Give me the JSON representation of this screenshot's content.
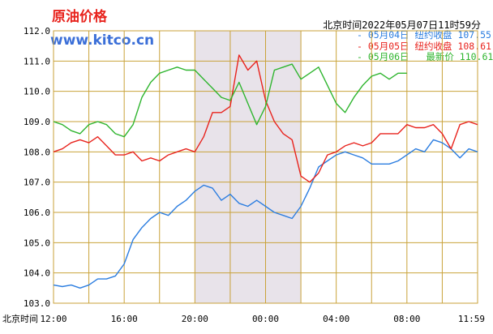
{
  "header": {
    "title": "原油价格",
    "site": "www.kitco.cn",
    "timestamp": "北京时间2022年05月07日11时59分"
  },
  "legend": [
    {
      "date": "05月04日",
      "label": "纽约收盘",
      "value": "107.55",
      "color": "#2b7de0"
    },
    {
      "date": "05月05日",
      "label": "纽约收盘",
      "value": "108.61",
      "color": "#e8231d"
    },
    {
      "date": "05月06日",
      "label": "最新价",
      "value": "110.61",
      "color": "#2fb52f"
    }
  ],
  "chart_data": {
    "type": "line",
    "x_axis_title": "北京时间",
    "x_tick_labels": [
      "12:00",
      "16:00",
      "20:00",
      "00:00",
      "04:00",
      "08:00",
      "11:59"
    ],
    "y_tick_labels": [
      "103.0",
      "104.0",
      "105.0",
      "106.0",
      "107.0",
      "108.0",
      "109.0",
      "110.0",
      "111.0",
      "112.0"
    ],
    "ylim": [
      103.0,
      112.0
    ],
    "x_hours_range": [
      0,
      24
    ],
    "shaded_hours": [
      8,
      14
    ],
    "grid": true,
    "series": [
      {
        "name": "05月04日",
        "color": "#2b7de0",
        "points": [
          [
            0,
            103.6
          ],
          [
            0.5,
            103.55
          ],
          [
            1,
            103.6
          ],
          [
            1.5,
            103.5
          ],
          [
            2,
            103.6
          ],
          [
            2.5,
            103.8
          ],
          [
            3,
            103.8
          ],
          [
            3.5,
            103.9
          ],
          [
            4,
            104.3
          ],
          [
            4.5,
            105.1
          ],
          [
            5,
            105.5
          ],
          [
            5.5,
            105.8
          ],
          [
            6,
            106.0
          ],
          [
            6.5,
            105.9
          ],
          [
            7,
            106.2
          ],
          [
            7.5,
            106.4
          ],
          [
            8,
            106.7
          ],
          [
            8.5,
            106.9
          ],
          [
            9,
            106.8
          ],
          [
            9.5,
            106.4
          ],
          [
            10,
            106.6
          ],
          [
            10.5,
            106.3
          ],
          [
            11,
            106.2
          ],
          [
            11.5,
            106.4
          ],
          [
            12,
            106.2
          ],
          [
            12.5,
            106.0
          ],
          [
            13,
            105.9
          ],
          [
            13.5,
            105.8
          ],
          [
            14,
            106.2
          ],
          [
            14.5,
            106.8
          ],
          [
            15,
            107.5
          ],
          [
            15.5,
            107.7
          ],
          [
            16,
            107.9
          ],
          [
            16.5,
            108.0
          ],
          [
            17,
            107.9
          ],
          [
            17.5,
            107.8
          ],
          [
            18,
            107.6
          ],
          [
            18.5,
            107.6
          ],
          [
            19,
            107.6
          ],
          [
            19.5,
            107.7
          ],
          [
            20,
            107.9
          ],
          [
            20.5,
            108.1
          ],
          [
            21,
            108.0
          ],
          [
            21.5,
            108.4
          ],
          [
            22,
            108.3
          ],
          [
            22.5,
            108.1
          ],
          [
            23,
            107.8
          ],
          [
            23.5,
            108.1
          ],
          [
            24,
            108.0
          ]
        ]
      },
      {
        "name": "05月05日",
        "color": "#e8231d",
        "points": [
          [
            0,
            108.0
          ],
          [
            0.5,
            108.1
          ],
          [
            1,
            108.3
          ],
          [
            1.5,
            108.4
          ],
          [
            2,
            108.3
          ],
          [
            2.5,
            108.5
          ],
          [
            3,
            108.2
          ],
          [
            3.5,
            107.9
          ],
          [
            4,
            107.9
          ],
          [
            4.5,
            108.0
          ],
          [
            5,
            107.7
          ],
          [
            5.5,
            107.8
          ],
          [
            6,
            107.7
          ],
          [
            6.5,
            107.9
          ],
          [
            7,
            108.0
          ],
          [
            7.5,
            108.1
          ],
          [
            8,
            108.0
          ],
          [
            8.5,
            108.5
          ],
          [
            9,
            109.3
          ],
          [
            9.5,
            109.3
          ],
          [
            10,
            109.5
          ],
          [
            10.5,
            111.2
          ],
          [
            11,
            110.7
          ],
          [
            11.5,
            111.0
          ],
          [
            12,
            109.7
          ],
          [
            12.5,
            109.0
          ],
          [
            13,
            108.6
          ],
          [
            13.5,
            108.4
          ],
          [
            14,
            107.2
          ],
          [
            14.5,
            107.0
          ],
          [
            15,
            107.3
          ],
          [
            15.5,
            107.9
          ],
          [
            16,
            108.0
          ],
          [
            16.5,
            108.2
          ],
          [
            17,
            108.3
          ],
          [
            17.5,
            108.2
          ],
          [
            18,
            108.3
          ],
          [
            18.5,
            108.6
          ],
          [
            19,
            108.6
          ],
          [
            19.5,
            108.6
          ],
          [
            20,
            108.9
          ],
          [
            20.5,
            108.8
          ],
          [
            21,
            108.8
          ],
          [
            21.5,
            108.9
          ],
          [
            22,
            108.6
          ],
          [
            22.5,
            108.1
          ],
          [
            23,
            108.9
          ],
          [
            23.5,
            109.0
          ],
          [
            24,
            108.9
          ]
        ]
      },
      {
        "name": "05月06日",
        "color": "#2fb52f",
        "points": [
          [
            0,
            109.0
          ],
          [
            0.5,
            108.9
          ],
          [
            1,
            108.7
          ],
          [
            1.5,
            108.6
          ],
          [
            2,
            108.9
          ],
          [
            2.5,
            109.0
          ],
          [
            3,
            108.9
          ],
          [
            3.5,
            108.6
          ],
          [
            4,
            108.5
          ],
          [
            4.5,
            108.9
          ],
          [
            5,
            109.8
          ],
          [
            5.5,
            110.3
          ],
          [
            6,
            110.6
          ],
          [
            6.5,
            110.7
          ],
          [
            7,
            110.8
          ],
          [
            7.5,
            110.7
          ],
          [
            8,
            110.7
          ],
          [
            8.5,
            110.4
          ],
          [
            9,
            110.1
          ],
          [
            9.5,
            109.8
          ],
          [
            10,
            109.7
          ],
          [
            10.5,
            110.3
          ],
          [
            11,
            109.6
          ],
          [
            11.5,
            108.9
          ],
          [
            12,
            109.5
          ],
          [
            12.5,
            110.7
          ],
          [
            13,
            110.8
          ],
          [
            13.5,
            110.9
          ],
          [
            14,
            110.4
          ],
          [
            14.5,
            110.6
          ],
          [
            15,
            110.8
          ],
          [
            15.5,
            110.2
          ],
          [
            16,
            109.6
          ],
          [
            16.5,
            109.3
          ],
          [
            17,
            109.8
          ],
          [
            17.5,
            110.2
          ],
          [
            18,
            110.5
          ],
          [
            18.5,
            110.6
          ],
          [
            19,
            110.4
          ],
          [
            19.5,
            110.6
          ],
          [
            20,
            110.6
          ]
        ]
      }
    ]
  }
}
